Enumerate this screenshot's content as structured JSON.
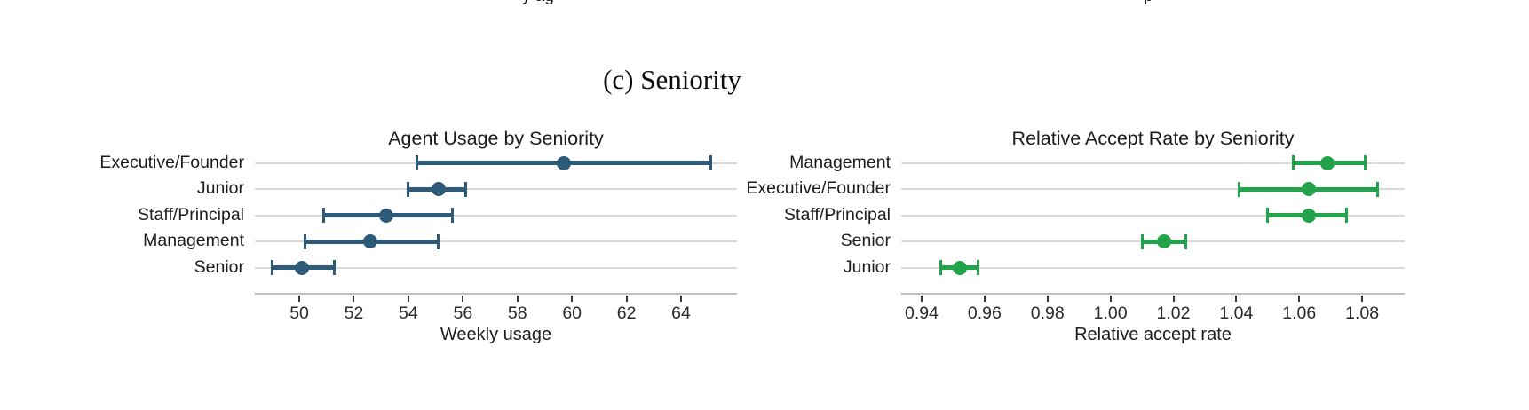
{
  "page": {
    "caption": "(c) Seniority",
    "top_fragments": [
      {
        "text": "y ag"
      },
      {
        "text": "p"
      }
    ]
  },
  "chart_data": [
    {
      "type": "scatter",
      "subtype": "horizontal-dot-plot-with-error-bars",
      "title": "Agent Usage by Seniority",
      "xlabel": "Weekly usage",
      "color": "#2e5a79",
      "grid": "category gridlines on",
      "legend": "none",
      "xlim": [
        48.37,
        66.05
      ],
      "ticks": [
        {
          "v": 50,
          "label": "50"
        },
        {
          "v": 52,
          "label": "52"
        },
        {
          "v": 54,
          "label": "54"
        },
        {
          "v": 56,
          "label": "56"
        },
        {
          "v": 58,
          "label": "58"
        },
        {
          "v": 60,
          "label": "60"
        },
        {
          "v": 62,
          "label": "62"
        },
        {
          "v": 64,
          "label": "64"
        }
      ],
      "points": [
        {
          "label": "Executive/Founder",
          "value": 59.7,
          "ci_low": 54.3,
          "ci_high": 65.1
        },
        {
          "label": "Junior",
          "value": 55.1,
          "ci_low": 54.0,
          "ci_high": 56.1
        },
        {
          "label": "Staff/Principal",
          "value": 53.2,
          "ci_low": 50.9,
          "ci_high": 55.6
        },
        {
          "label": "Management",
          "value": 52.6,
          "ci_low": 50.2,
          "ci_high": 55.1
        },
        {
          "label": "Senior",
          "value": 50.1,
          "ci_low": 49.0,
          "ci_high": 51.3
        }
      ]
    },
    {
      "type": "scatter",
      "subtype": "horizontal-dot-plot-with-error-bars",
      "title": "Relative Accept Rate by Seniority",
      "xlabel": "Relative accept rate",
      "color": "#22a24a",
      "grid": "category gridlines on",
      "legend": "none",
      "xlim": [
        0.9335,
        1.0935
      ],
      "ticks": [
        {
          "v": 0.94,
          "label": "0.94"
        },
        {
          "v": 0.96,
          "label": "0.96"
        },
        {
          "v": 0.98,
          "label": "0.98"
        },
        {
          "v": 1.0,
          "label": "1.00"
        },
        {
          "v": 1.02,
          "label": "1.02"
        },
        {
          "v": 1.04,
          "label": "1.04"
        },
        {
          "v": 1.06,
          "label": "1.06"
        },
        {
          "v": 1.08,
          "label": "1.08"
        }
      ],
      "points": [
        {
          "label": "Management",
          "value": 1.069,
          "ci_low": 1.058,
          "ci_high": 1.081
        },
        {
          "label": "Executive/Founder",
          "value": 1.063,
          "ci_low": 1.041,
          "ci_high": 1.085
        },
        {
          "label": "Staff/Principal",
          "value": 1.063,
          "ci_low": 1.05,
          "ci_high": 1.075
        },
        {
          "label": "Senior",
          "value": 1.017,
          "ci_low": 1.01,
          "ci_high": 1.024
        },
        {
          "label": "Junior",
          "value": 0.952,
          "ci_low": 0.946,
          "ci_high": 0.958
        }
      ]
    }
  ]
}
